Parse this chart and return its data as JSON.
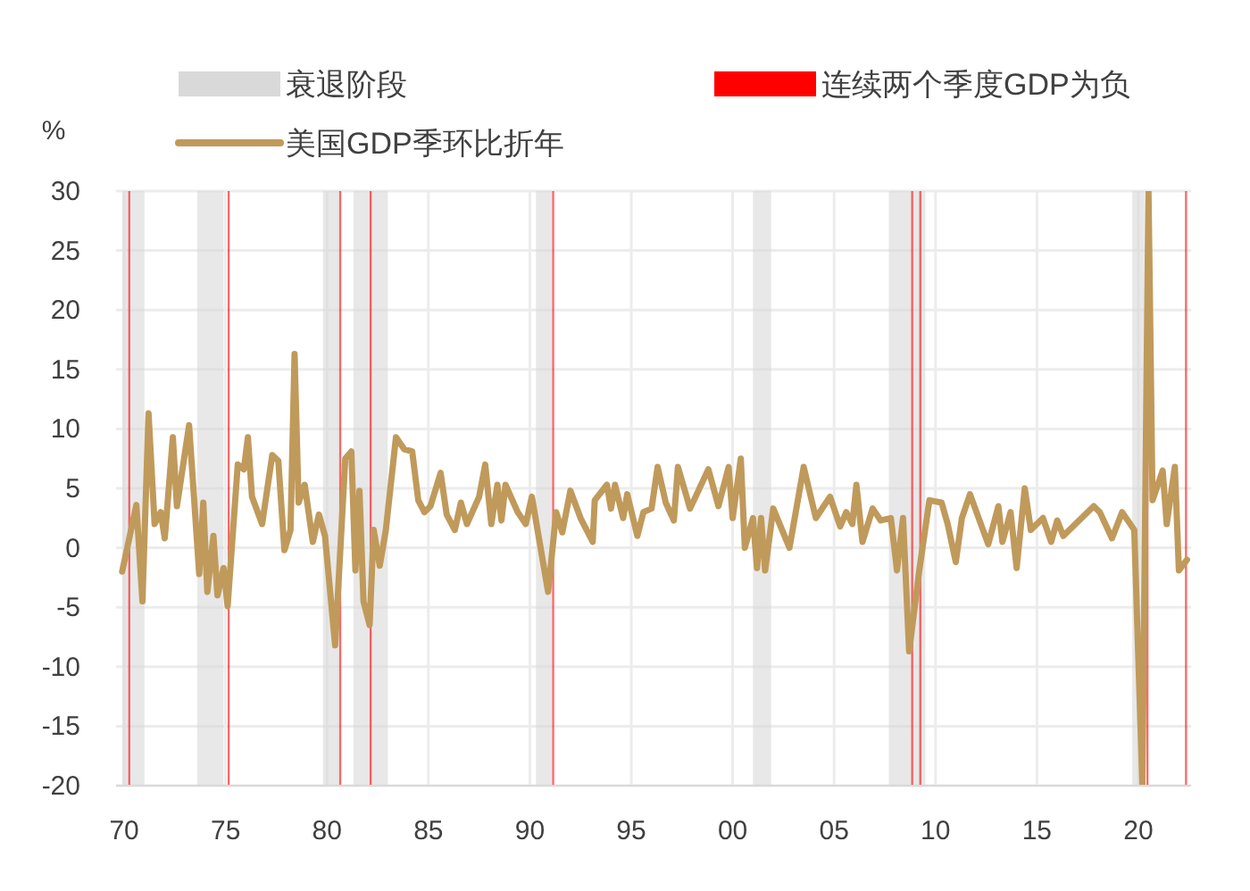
{
  "chart_data": {
    "type": "line",
    "ylabel": "%",
    "legend": "top",
    "grid": true,
    "xlim": [
      1969.6,
      2022.6
    ],
    "ylim": [
      -20,
      30
    ],
    "xticks": [
      {
        "value": 1970,
        "label": "70"
      },
      {
        "value": 1975,
        "label": "75"
      },
      {
        "value": 1980,
        "label": "80"
      },
      {
        "value": 1985,
        "label": "85"
      },
      {
        "value": 1990,
        "label": "90"
      },
      {
        "value": 1995,
        "label": "95"
      },
      {
        "value": 2000,
        "label": "00"
      },
      {
        "value": 2005,
        "label": "05"
      },
      {
        "value": 2010,
        "label": "10"
      },
      {
        "value": 2015,
        "label": "15"
      },
      {
        "value": 2020,
        "label": "20"
      }
    ],
    "yticks": [
      -20,
      -15,
      -10,
      -5,
      0,
      5,
      10,
      15,
      20,
      25,
      30
    ],
    "bands": [
      {
        "axis": "x",
        "from": 1969.9,
        "to": 1971.0,
        "label": "衰退阶段",
        "color": "#d9d9d9"
      },
      {
        "axis": "x",
        "from": 1973.6,
        "to": 1974.9,
        "color": "#d9d9d9"
      },
      {
        "axis": "x",
        "from": 1979.8,
        "to": 1980.6,
        "color": "#d9d9d9"
      },
      {
        "axis": "x",
        "from": 1981.3,
        "to": 1983.0,
        "color": "#d9d9d9"
      },
      {
        "axis": "x",
        "from": 1990.3,
        "to": 1991.1,
        "color": "#d9d9d9"
      },
      {
        "axis": "x",
        "from": 2001.0,
        "to": 2001.9,
        "color": "#d9d9d9"
      },
      {
        "axis": "x",
        "from": 2007.7,
        "to": 2009.5,
        "color": "#d9d9d9"
      },
      {
        "axis": "x",
        "from": 2019.7,
        "to": 2020.3,
        "color": "#d9d9d9"
      },
      {
        "axis": "x",
        "from": 1970.2,
        "to": 1970.3,
        "label": "连续两个季度GDP为负",
        "color": "#ff0000"
      },
      {
        "axis": "x",
        "from": 1975.1,
        "to": 1975.2,
        "color": "#ff0000"
      },
      {
        "axis": "x",
        "from": 1980.6,
        "to": 1980.7,
        "color": "#ff0000"
      },
      {
        "axis": "x",
        "from": 1982.1,
        "to": 1982.2,
        "color": "#ff0000"
      },
      {
        "axis": "x",
        "from": 1991.1,
        "to": 1991.2,
        "color": "#ff0000"
      },
      {
        "axis": "x",
        "from": 2008.8,
        "to": 2008.9,
        "color": "#ff0000"
      },
      {
        "axis": "x",
        "from": 2009.2,
        "to": 2009.3,
        "color": "#ff0000"
      },
      {
        "axis": "x",
        "from": 2020.4,
        "to": 2020.5,
        "color": "#ff0000"
      },
      {
        "axis": "x",
        "from": 2022.3,
        "to": 2022.4,
        "color": "#ff0000"
      }
    ],
    "series": [
      {
        "name": "美国GDP季环比折年",
        "color": "#c09a5b",
        "x": [
          1969.9,
          1970.6,
          1970.9,
          1971.2,
          1971.5,
          1971.8,
          1972.0,
          1972.4,
          1972.6,
          1973.2,
          1973.7,
          1973.9,
          1974.1,
          1974.4,
          1974.6,
          1974.9,
          1975.1,
          1975.6,
          1975.9,
          1976.1,
          1976.3,
          1976.8,
          1977.3,
          1977.6,
          1977.9,
          1978.2,
          1978.4,
          1978.6,
          1978.9,
          1979.3,
          1979.6,
          1979.9,
          1980.4,
          1980.9,
          1981.2,
          1981.4,
          1981.6,
          1981.8,
          1982.1,
          1982.3,
          1982.6,
          1982.9,
          1983.4,
          1983.8,
          1984.2,
          1984.5,
          1984.8,
          1985.1,
          1985.6,
          1985.9,
          1986.3,
          1986.6,
          1986.9,
          1987.5,
          1987.8,
          1988.1,
          1988.4,
          1988.6,
          1988.8,
          1989.4,
          1989.8,
          1990.1,
          1990.9,
          1991.3,
          1991.6,
          1992.0,
          1992.5,
          1993.1,
          1993.2,
          1993.8,
          1994.0,
          1994.2,
          1994.6,
          1994.8,
          1995.3,
          1995.6,
          1996.0,
          1996.3,
          1996.7,
          1997.1,
          1997.3,
          1997.9,
          1998.8,
          1999.3,
          1999.8,
          2000.0,
          2000.4,
          2000.6,
          2001.0,
          2001.2,
          2001.4,
          2001.6,
          2002.0,
          2002.8,
          2003.5,
          2004.1,
          2004.8,
          2005.3,
          2005.6,
          2005.9,
          2006.1,
          2006.4,
          2006.9,
          2007.3,
          2007.8,
          2008.1,
          2008.4,
          2008.7,
          2009.2,
          2009.7,
          2010.3,
          2010.6,
          2011.0,
          2011.3,
          2011.7,
          2012.6,
          2013.1,
          2013.3,
          2013.7,
          2014.0,
          2014.4,
          2014.7,
          2015.3,
          2015.7,
          2016.0,
          2016.3,
          2017.8,
          2018.1,
          2018.7,
          2019.2,
          2019.8,
          2020.2,
          2020.5,
          2020.7,
          2021.2,
          2021.4,
          2021.8,
          2022.0,
          2022.4
        ],
        "values": [
          -2.0,
          3.6,
          -4.5,
          11.3,
          2.0,
          3.0,
          0.8,
          9.3,
          3.5,
          10.3,
          -2.2,
          3.8,
          -3.7,
          1.0,
          -4.0,
          -1.7,
          -4.9,
          7.0,
          6.6,
          9.3,
          4.3,
          2.0,
          7.8,
          7.3,
          -0.2,
          1.5,
          16.3,
          3.8,
          5.3,
          0.5,
          2.8,
          1.0,
          -8.2,
          7.5,
          8.1,
          -1.9,
          4.8,
          -4.5,
          -6.5,
          1.5,
          -1.5,
          1.5,
          9.3,
          8.3,
          8.1,
          4.0,
          3.0,
          3.5,
          6.3,
          2.8,
          1.5,
          3.8,
          2.0,
          4.3,
          7.0,
          2.0,
          5.3,
          2.3,
          5.3,
          3.0,
          2.0,
          4.3,
          -3.7,
          3.0,
          1.3,
          4.8,
          2.5,
          0.5,
          4.0,
          5.3,
          3.3,
          5.3,
          2.5,
          4.5,
          1.0,
          3.0,
          3.3,
          6.8,
          3.8,
          2.3,
          6.8,
          3.3,
          6.6,
          3.5,
          6.8,
          2.5,
          7.5,
          0.0,
          2.5,
          -1.7,
          2.5,
          -1.9,
          3.3,
          0.0,
          6.8,
          2.5,
          4.3,
          1.8,
          3.0,
          2.0,
          5.3,
          0.5,
          3.3,
          2.3,
          2.5,
          -1.9,
          2.5,
          -8.7,
          -1.9,
          4.0,
          3.8,
          2.0,
          -1.2,
          2.5,
          4.5,
          0.3,
          3.5,
          0.5,
          3.0,
          -1.7,
          5.0,
          1.5,
          2.5,
          0.5,
          2.3,
          1.0,
          3.5,
          3.0,
          0.8,
          3.0,
          1.5,
          -20,
          30,
          4.0,
          6.5,
          2.0,
          6.8,
          -1.9,
          -1.0
        ]
      }
    ]
  }
}
